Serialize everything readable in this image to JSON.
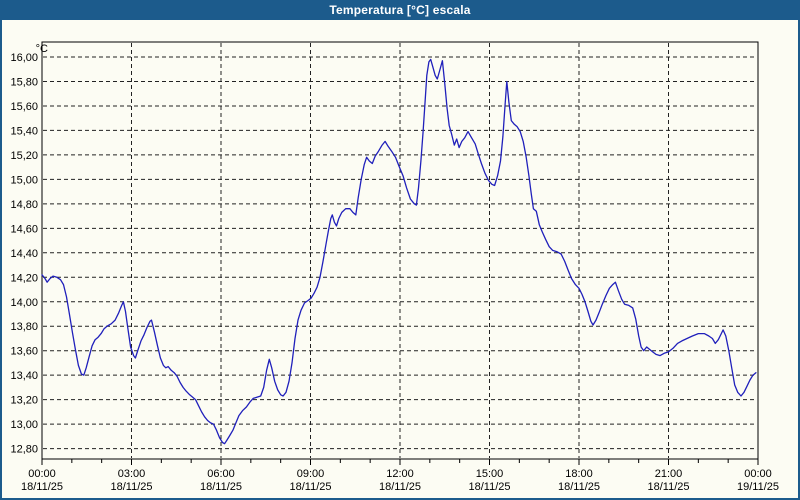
{
  "window": {
    "title": "Temperatura [°C] escala"
  },
  "colors": {
    "titlebar": "#1c5b8c",
    "frame": "#1c5b8c",
    "background": "#fcfcf3",
    "plot_border": "#000000",
    "grid": "#222222",
    "line": "#2020bb",
    "text": "#000000"
  },
  "chart_data": {
    "type": "line",
    "title": "Temperatura [°C] escala",
    "ylabel_unit": "°C",
    "xlabel": "",
    "ylim": [
      12.8,
      16.0
    ],
    "y_tick_step": 0.2,
    "grid": "dashed",
    "legend": "none",
    "y_ticks": [
      {
        "value": 16.0,
        "label": "16,00"
      },
      {
        "value": 15.8,
        "label": "15,80"
      },
      {
        "value": 15.6,
        "label": "15,60"
      },
      {
        "value": 15.4,
        "label": "15,40"
      },
      {
        "value": 15.2,
        "label": "15,20"
      },
      {
        "value": 15.0,
        "label": "15,00"
      },
      {
        "value": 14.8,
        "label": "14,80"
      },
      {
        "value": 14.6,
        "label": "14,60"
      },
      {
        "value": 14.4,
        "label": "14,40"
      },
      {
        "value": 14.2,
        "label": "14,20"
      },
      {
        "value": 14.0,
        "label": "14,00"
      },
      {
        "value": 13.8,
        "label": "13,80"
      },
      {
        "value": 13.6,
        "label": "13,60"
      },
      {
        "value": 13.4,
        "label": "13,40"
      },
      {
        "value": 13.2,
        "label": "13,20"
      },
      {
        "value": 13.0,
        "label": "13,00"
      },
      {
        "value": 12.8,
        "label": "12,80"
      }
    ],
    "x_ticks": [
      {
        "hour": 0,
        "time": "00:00",
        "date": "18/11/25"
      },
      {
        "hour": 3,
        "time": "03:00",
        "date": "18/11/25"
      },
      {
        "hour": 6,
        "time": "06:00",
        "date": "18/11/25"
      },
      {
        "hour": 9,
        "time": "09:00",
        "date": "18/11/25"
      },
      {
        "hour": 12,
        "time": "12:00",
        "date": "18/11/25"
      },
      {
        "hour": 15,
        "time": "15:00",
        "date": "18/11/25"
      },
      {
        "hour": 18,
        "time": "18:00",
        "date": "18/11/25"
      },
      {
        "hour": 21,
        "time": "21:00",
        "date": "18/11/25"
      },
      {
        "hour": 24,
        "time": "00:00",
        "date": "19/11/25"
      }
    ],
    "x_minor_tick_hours": 1,
    "xlim_hours": [
      0,
      24
    ],
    "series": [
      {
        "name": "Temperatura",
        "unit": "°C",
        "points": [
          [
            0.0,
            14.22
          ],
          [
            0.1,
            14.19
          ],
          [
            0.17,
            14.16
          ],
          [
            0.27,
            14.19
          ],
          [
            0.37,
            14.21
          ],
          [
            0.5,
            14.2
          ],
          [
            0.62,
            14.18
          ],
          [
            0.72,
            14.14
          ],
          [
            0.82,
            14.04
          ],
          [
            0.92,
            13.9
          ],
          [
            1.02,
            13.75
          ],
          [
            1.12,
            13.61
          ],
          [
            1.22,
            13.48
          ],
          [
            1.32,
            13.41
          ],
          [
            1.4,
            13.4
          ],
          [
            1.48,
            13.46
          ],
          [
            1.58,
            13.55
          ],
          [
            1.68,
            13.64
          ],
          [
            1.78,
            13.69
          ],
          [
            1.88,
            13.71
          ],
          [
            1.98,
            13.74
          ],
          [
            2.08,
            13.78
          ],
          [
            2.18,
            13.8
          ],
          [
            2.32,
            13.82
          ],
          [
            2.45,
            13.85
          ],
          [
            2.57,
            13.91
          ],
          [
            2.67,
            13.97
          ],
          [
            2.73,
            14.0
          ],
          [
            2.8,
            13.92
          ],
          [
            2.88,
            13.78
          ],
          [
            2.97,
            13.63
          ],
          [
            3.07,
            13.56
          ],
          [
            3.13,
            13.54
          ],
          [
            3.22,
            13.61
          ],
          [
            3.32,
            13.68
          ],
          [
            3.42,
            13.73
          ],
          [
            3.52,
            13.79
          ],
          [
            3.62,
            13.84
          ],
          [
            3.67,
            13.85
          ],
          [
            3.77,
            13.75
          ],
          [
            3.87,
            13.64
          ],
          [
            3.97,
            13.54
          ],
          [
            4.07,
            13.48
          ],
          [
            4.15,
            13.46
          ],
          [
            4.23,
            13.47
          ],
          [
            4.33,
            13.44
          ],
          [
            4.43,
            13.42
          ],
          [
            4.53,
            13.39
          ],
          [
            4.63,
            13.34
          ],
          [
            4.73,
            13.3
          ],
          [
            4.83,
            13.27
          ],
          [
            4.95,
            13.24
          ],
          [
            5.05,
            13.22
          ],
          [
            5.15,
            13.2
          ],
          [
            5.25,
            13.15
          ],
          [
            5.35,
            13.1
          ],
          [
            5.45,
            13.06
          ],
          [
            5.55,
            13.03
          ],
          [
            5.65,
            13.01
          ],
          [
            5.75,
            13.0
          ],
          [
            5.85,
            12.95
          ],
          [
            5.95,
            12.89
          ],
          [
            6.05,
            12.85
          ],
          [
            6.12,
            12.84
          ],
          [
            6.2,
            12.87
          ],
          [
            6.3,
            12.91
          ],
          [
            6.4,
            12.95
          ],
          [
            6.5,
            13.01
          ],
          [
            6.6,
            13.07
          ],
          [
            6.72,
            13.11
          ],
          [
            6.85,
            13.14
          ],
          [
            6.97,
            13.18
          ],
          [
            7.08,
            13.21
          ],
          [
            7.2,
            13.22
          ],
          [
            7.33,
            13.23
          ],
          [
            7.43,
            13.3
          ],
          [
            7.53,
            13.44
          ],
          [
            7.62,
            13.53
          ],
          [
            7.7,
            13.46
          ],
          [
            7.8,
            13.35
          ],
          [
            7.9,
            13.28
          ],
          [
            8.0,
            13.24
          ],
          [
            8.08,
            13.23
          ],
          [
            8.18,
            13.26
          ],
          [
            8.28,
            13.35
          ],
          [
            8.38,
            13.5
          ],
          [
            8.48,
            13.7
          ],
          [
            8.58,
            13.85
          ],
          [
            8.68,
            13.93
          ],
          [
            8.8,
            13.99
          ],
          [
            8.92,
            14.01
          ],
          [
            9.02,
            14.03
          ],
          [
            9.12,
            14.07
          ],
          [
            9.22,
            14.12
          ],
          [
            9.32,
            14.2
          ],
          [
            9.42,
            14.33
          ],
          [
            9.52,
            14.47
          ],
          [
            9.6,
            14.58
          ],
          [
            9.68,
            14.68
          ],
          [
            9.73,
            14.71
          ],
          [
            9.8,
            14.65
          ],
          [
            9.87,
            14.62
          ],
          [
            9.95,
            14.68
          ],
          [
            10.05,
            14.73
          ],
          [
            10.18,
            14.76
          ],
          [
            10.32,
            14.76
          ],
          [
            10.42,
            14.73
          ],
          [
            10.52,
            14.71
          ],
          [
            10.6,
            14.85
          ],
          [
            10.7,
            15.0
          ],
          [
            10.8,
            15.12
          ],
          [
            10.88,
            15.18
          ],
          [
            10.97,
            15.15
          ],
          [
            11.07,
            15.13
          ],
          [
            11.17,
            15.19
          ],
          [
            11.28,
            15.23
          ],
          [
            11.4,
            15.28
          ],
          [
            11.5,
            15.31
          ],
          [
            11.6,
            15.27
          ],
          [
            11.72,
            15.23
          ],
          [
            11.85,
            15.18
          ],
          [
            11.98,
            15.1
          ],
          [
            12.1,
            15.03
          ],
          [
            12.22,
            14.93
          ],
          [
            12.35,
            14.84
          ],
          [
            12.48,
            14.8
          ],
          [
            12.55,
            14.79
          ],
          [
            12.62,
            14.93
          ],
          [
            12.7,
            15.15
          ],
          [
            12.77,
            15.38
          ],
          [
            12.83,
            15.6
          ],
          [
            12.9,
            15.85
          ],
          [
            12.97,
            15.96
          ],
          [
            13.03,
            15.98
          ],
          [
            13.1,
            15.92
          ],
          [
            13.18,
            15.85
          ],
          [
            13.25,
            15.82
          ],
          [
            13.33,
            15.89
          ],
          [
            13.42,
            15.97
          ],
          [
            13.5,
            15.78
          ],
          [
            13.58,
            15.58
          ],
          [
            13.65,
            15.44
          ],
          [
            13.73,
            15.37
          ],
          [
            13.82,
            15.28
          ],
          [
            13.9,
            15.33
          ],
          [
            13.98,
            15.26
          ],
          [
            14.07,
            15.31
          ],
          [
            14.17,
            15.34
          ],
          [
            14.28,
            15.39
          ],
          [
            14.4,
            15.34
          ],
          [
            14.52,
            15.29
          ],
          [
            14.62,
            15.21
          ],
          [
            14.73,
            15.13
          ],
          [
            14.85,
            15.05
          ],
          [
            14.97,
            14.99
          ],
          [
            15.08,
            14.96
          ],
          [
            15.17,
            14.95
          ],
          [
            15.27,
            15.03
          ],
          [
            15.37,
            15.15
          ],
          [
            15.45,
            15.35
          ],
          [
            15.52,
            15.6
          ],
          [
            15.58,
            15.8
          ],
          [
            15.65,
            15.63
          ],
          [
            15.73,
            15.48
          ],
          [
            15.83,
            15.45
          ],
          [
            15.93,
            15.43
          ],
          [
            16.03,
            15.39
          ],
          [
            16.13,
            15.31
          ],
          [
            16.23,
            15.18
          ],
          [
            16.32,
            15.03
          ],
          [
            16.4,
            14.88
          ],
          [
            16.47,
            14.76
          ],
          [
            16.57,
            14.74
          ],
          [
            16.67,
            14.63
          ],
          [
            16.77,
            14.57
          ],
          [
            16.88,
            14.51
          ],
          [
            17.0,
            14.45
          ],
          [
            17.12,
            14.42
          ],
          [
            17.25,
            14.41
          ],
          [
            17.4,
            14.39
          ],
          [
            17.52,
            14.33
          ],
          [
            17.63,
            14.26
          ],
          [
            17.75,
            14.19
          ],
          [
            17.88,
            14.14
          ],
          [
            18.0,
            14.11
          ],
          [
            18.1,
            14.06
          ],
          [
            18.2,
            14.0
          ],
          [
            18.3,
            13.92
          ],
          [
            18.4,
            13.84
          ],
          [
            18.47,
            13.81
          ],
          [
            18.57,
            13.85
          ],
          [
            18.67,
            13.91
          ],
          [
            18.78,
            13.98
          ],
          [
            18.9,
            14.05
          ],
          [
            19.02,
            14.11
          ],
          [
            19.13,
            14.14
          ],
          [
            19.22,
            14.16
          ],
          [
            19.32,
            14.09
          ],
          [
            19.43,
            14.02
          ],
          [
            19.53,
            13.98
          ],
          [
            19.67,
            13.97
          ],
          [
            19.8,
            13.95
          ],
          [
            19.9,
            13.86
          ],
          [
            20.0,
            13.72
          ],
          [
            20.08,
            13.63
          ],
          [
            20.17,
            13.6
          ],
          [
            20.27,
            13.63
          ],
          [
            20.37,
            13.61
          ],
          [
            20.47,
            13.59
          ],
          [
            20.58,
            13.57
          ],
          [
            20.72,
            13.56
          ],
          [
            20.87,
            13.58
          ],
          [
            21.0,
            13.59
          ],
          [
            21.15,
            13.62
          ],
          [
            21.3,
            13.66
          ],
          [
            21.45,
            13.68
          ],
          [
            21.62,
            13.7
          ],
          [
            21.8,
            13.72
          ],
          [
            22.0,
            13.74
          ],
          [
            22.2,
            13.74
          ],
          [
            22.35,
            13.72
          ],
          [
            22.47,
            13.7
          ],
          [
            22.57,
            13.66
          ],
          [
            22.67,
            13.69
          ],
          [
            22.77,
            13.74
          ],
          [
            22.83,
            13.77
          ],
          [
            22.92,
            13.72
          ],
          [
            23.02,
            13.6
          ],
          [
            23.12,
            13.46
          ],
          [
            23.22,
            13.32
          ],
          [
            23.32,
            13.26
          ],
          [
            23.43,
            13.23
          ],
          [
            23.53,
            13.26
          ],
          [
            23.63,
            13.31
          ],
          [
            23.73,
            13.36
          ],
          [
            23.83,
            13.4
          ],
          [
            23.93,
            13.42
          ]
        ]
      }
    ]
  }
}
